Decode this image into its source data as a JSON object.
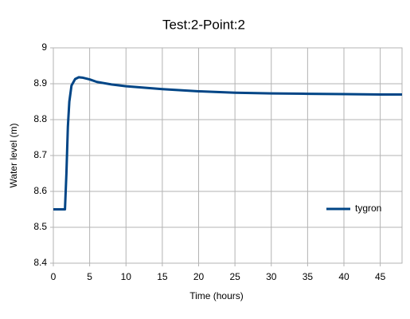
{
  "chart_data": {
    "type": "line",
    "title": "Test:2-Point:2",
    "x_label": "Time (hours)",
    "y_label": "Water level (m)",
    "x": [
      0,
      1.6,
      1.8,
      2,
      2.2,
      2.5,
      3,
      3.5,
      4,
      5,
      6,
      8,
      10,
      15,
      20,
      25,
      30,
      35,
      40,
      45,
      48
    ],
    "series": [
      {
        "name": "tygron",
        "color": "#004586",
        "values": [
          8.55,
          8.55,
          8.65,
          8.78,
          8.85,
          8.895,
          8.913,
          8.918,
          8.917,
          8.912,
          8.905,
          8.898,
          8.893,
          8.885,
          8.879,
          8.875,
          8.873,
          8.872,
          8.871,
          8.87,
          8.87
        ]
      }
    ],
    "xlim": [
      0,
      48
    ],
    "xticks": [
      0,
      5,
      10,
      15,
      20,
      25,
      30,
      35,
      40,
      45
    ],
    "ylim": [
      8.4,
      9
    ],
    "yticks": [
      8.4,
      8.5,
      8.6,
      8.7,
      8.8,
      8.9,
      9
    ],
    "grid": true,
    "legend": "right"
  }
}
